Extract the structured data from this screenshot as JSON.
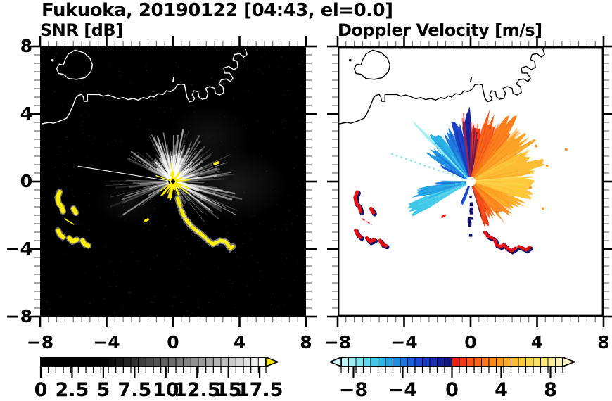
{
  "figure": {
    "title": "Fukuoka, 20190122 [04:43, el=0.0]",
    "station": "Fukuoka",
    "date": "20190122",
    "time": "04:43",
    "elevation": "el=0.0"
  },
  "panels": [
    {
      "title": "SNR [dB]"
    },
    {
      "title": "Doppler Velocity [m/s]"
    }
  ],
  "axes": {
    "x": {
      "min": -8,
      "max": 8,
      "major_values": [
        -8,
        -4,
        0,
        4,
        8
      ],
      "labels": [
        "−8",
        "−4",
        "0",
        "4",
        "8"
      ],
      "minor_step": 0.5
    },
    "y": {
      "min": -8,
      "max": 8,
      "major_values": [
        8,
        4,
        0,
        -4,
        -8
      ],
      "labels": [
        "8",
        "4",
        "0",
        "−4",
        "−8"
      ],
      "minor_step": 0.5
    }
  },
  "chart_data": [
    {
      "type": "heatmap",
      "title": "SNR [dB]",
      "units": "dB",
      "radar_center_xy": [
        0,
        0
      ],
      "background_color": "#000000",
      "coast_color": "#ffffff",
      "saturated_color": "#ffee00",
      "colorbar": {
        "min": 0,
        "max": 18,
        "segments": 30,
        "label_values": [
          0,
          2.5,
          5,
          7.5,
          10,
          12.5,
          15,
          17.5
        ],
        "labels": [
          "0",
          "2.5",
          "5",
          "7.5",
          "10",
          "12.5",
          "15",
          "17.5"
        ],
        "black_below": 5,
        "over_arrow_color": "#f2e400",
        "style": "grayscale"
      },
      "streak_sectors": [
        {
          "az0": 330,
          "az1": 362,
          "n": 30,
          "rmin": 1.4,
          "rmax": 3.1,
          "amin": 0.12,
          "amax": 0.75
        },
        {
          "az0": 2,
          "az1": 34,
          "n": 30,
          "rmin": 1.4,
          "rmax": 3.3,
          "amin": 0.12,
          "amax": 0.7
        },
        {
          "az0": 34,
          "az1": 64,
          "n": 24,
          "rmin": 1.4,
          "rmax": 3.0,
          "amin": 0.08,
          "amax": 0.5
        },
        {
          "az0": 64,
          "az1": 96,
          "n": 26,
          "rmin": 1.5,
          "rmax": 3.8,
          "amin": 0.08,
          "amax": 0.5
        },
        {
          "az0": 96,
          "az1": 126,
          "n": 26,
          "rmin": 1.8,
          "rmax": 4.3,
          "amin": 0.1,
          "amax": 0.6
        },
        {
          "az0": 126,
          "az1": 152,
          "n": 16,
          "rmin": 1.4,
          "rmax": 3.6,
          "amin": 0.07,
          "amax": 0.45
        },
        {
          "az0": 152,
          "az1": 172,
          "n": 9,
          "rmin": 0.7,
          "rmax": 2.2,
          "amin": 0.05,
          "amax": 0.3
        },
        {
          "az0": 233,
          "az1": 272,
          "n": 22,
          "rmin": 1.6,
          "rmax": 4.1,
          "amin": 0.07,
          "amax": 0.5
        },
        {
          "az0": 295,
          "az1": 330,
          "n": 22,
          "rmin": 1.5,
          "rmax": 3.1,
          "amin": 0.1,
          "amax": 0.6
        }
      ],
      "haze": [
        {
          "cx": 3.6,
          "cy": -0.2,
          "rx": 3.4,
          "ry": 2.2,
          "a": 0.1
        },
        {
          "cx": 2.2,
          "cy": 2.6,
          "rx": 2.6,
          "ry": 2.0,
          "a": 0.07
        },
        {
          "cx": -2.6,
          "cy": -1.2,
          "rx": 2.2,
          "ry": 1.4,
          "a": 0.06
        }
      ],
      "shadow_rays_az": [
        193.5,
        200.5
      ],
      "long_thin_ray": {
        "az": 279,
        "r": 5.8
      },
      "saturated_arc": [
        [
          [
            0.28,
            -1.0
          ],
          [
            0.42,
            -1.45
          ]
        ],
        [
          [
            0.5,
            -1.7
          ],
          [
            0.65,
            -2.05
          ]
        ],
        [
          [
            0.78,
            -2.25
          ],
          [
            1.02,
            -2.55
          ]
        ],
        [
          [
            1.15,
            -2.7
          ],
          [
            1.45,
            -2.95
          ]
        ],
        [
          [
            1.6,
            -3.05
          ],
          [
            1.95,
            -3.35
          ]
        ],
        [
          [
            2.1,
            -3.5
          ],
          [
            2.4,
            -3.7
          ],
          [
            2.65,
            -3.6
          ]
        ],
        [
          [
            2.85,
            -3.5
          ],
          [
            3.1,
            -3.55
          ]
        ],
        [
          [
            3.2,
            -3.6
          ],
          [
            3.45,
            -3.95
          ],
          [
            3.6,
            -3.85
          ]
        ]
      ],
      "saturated_specks": [
        [
          [
            -1.7,
            -2.35
          ],
          [
            -1.52,
            -2.25
          ]
        ],
        [
          [
            2.5,
            1.05
          ],
          [
            2.72,
            1.12
          ]
        ]
      ]
    },
    {
      "type": "heatmap",
      "title": "Doppler Velocity [m/s]",
      "units": "m/s",
      "radar_center_xy": [
        0,
        0
      ],
      "background_color": "#ffffff",
      "coast_color": "#000000",
      "colorbar": {
        "min": -9,
        "max": 9,
        "segments": 30,
        "label_values": [
          -8,
          -4,
          0,
          4,
          8
        ],
        "labels": [
          "−8",
          "−4",
          "0",
          "4",
          "8"
        ],
        "negative_stops": [
          "#0d116e",
          "#1b2fb4",
          "#1a53d8",
          "#1e8fe0",
          "#2fc0e8",
          "#7fe6f0",
          "#d2f6f8"
        ],
        "positive_stops": [
          "#ee1111",
          "#f4551a",
          "#fa7f1c",
          "#fcab28",
          "#fdd243",
          "#fce97e",
          "#f9f3c5"
        ]
      },
      "velocity_sectors": [
        {
          "az0": 361,
          "az1": 372,
          "r": 3.9,
          "v": 0.8
        },
        {
          "az0": 372,
          "az1": 386,
          "r": 4.2,
          "v": 1.8
        },
        {
          "az0": 386,
          "az1": 402,
          "r": 4.5,
          "v": 3.0
        },
        {
          "az0": 402,
          "az1": 420,
          "r": 4.4,
          "v": 4.2
        },
        {
          "az0": 420,
          "az1": 444,
          "r": 4.3,
          "v": 5.2
        },
        {
          "az0": 444,
          "az1": 468,
          "r": 4.0,
          "v": 5.6
        },
        {
          "az0": 468,
          "az1": 486,
          "r": 3.4,
          "v": 4.6
        },
        {
          "az0": 486,
          "az1": 502,
          "r": 3.0,
          "v": 3.4
        },
        {
          "az0": 502,
          "az1": 514,
          "r": 2.6,
          "v": 2.0
        },
        {
          "az0": 514,
          "az1": 524,
          "r": 2.9,
          "v": 0.9
        },
        {
          "az0": 196,
          "az1": 206,
          "r": 1.5,
          "v": -3.0
        },
        {
          "az0": 238,
          "az1": 252,
          "r": 4.1,
          "v": -6.3
        },
        {
          "az0": 252,
          "az1": 264,
          "r": 3.5,
          "v": -5.2
        },
        {
          "az0": 264,
          "az1": 271,
          "r": 2.3,
          "v": -3.8
        },
        {
          "az0": 294,
          "az1": 300,
          "r": 2.0,
          "v": -3.2
        },
        {
          "az0": 300,
          "az1": 313,
          "r": 3.0,
          "v": -4.6
        },
        {
          "az0": 313,
          "az1": 328,
          "r": 3.5,
          "v": -5.5
        },
        {
          "az0": 328,
          "az1": 340,
          "r": 3.3,
          "v": -4.0
        },
        {
          "az0": 340,
          "az1": 351,
          "r": 3.6,
          "v": -2.2
        },
        {
          "az0": 351,
          "az1": 361,
          "r": 4.4,
          "v": -1.0
        }
      ],
      "pale_cyan_streak": {
        "az0": 314,
        "az1": 317,
        "r": 5.1,
        "v": -8.2
      },
      "dotted_ray": {
        "az": 289,
        "r": 5.1,
        "v": -7.5
      },
      "red_dash": [
        [
          -1.7,
          -2.1
        ],
        [
          -1.55,
          -2.0
        ]
      ],
      "bottom_squiggles": [
        [
          [
            0.85,
            -3.0
          ],
          [
            1.05,
            -3.25
          ],
          [
            1.3,
            -3.35
          ]
        ],
        [
          [
            1.45,
            -3.45
          ],
          [
            1.55,
            -3.75
          ],
          [
            1.8,
            -3.85
          ],
          [
            2.0,
            -3.75
          ],
          [
            2.2,
            -3.95
          ],
          [
            2.45,
            -4.1
          ],
          [
            2.7,
            -3.95
          ]
        ],
        [
          [
            2.9,
            -3.85
          ],
          [
            3.15,
            -3.95
          ],
          [
            3.35,
            -4.05
          ],
          [
            3.55,
            -3.9
          ]
        ]
      ],
      "warm_specks": [
        [
          3.6,
          -0.35
        ],
        [
          4.6,
          0.9
        ],
        [
          5.75,
          1.9
        ],
        [
          3.95,
          2.1
        ],
        [
          4.35,
          -1.6
        ]
      ],
      "navy_specks": [
        [
          0.0,
          -0.9
        ],
        [
          0.05,
          -1.3
        ],
        [
          0.0,
          -1.75
        ],
        [
          0.08,
          -2.2
        ]
      ],
      "cyan_specks": [
        [
          -0.5,
          -0.1
        ],
        [
          -0.85,
          -0.15
        ]
      ]
    }
  ],
  "hard_target_blobs": {
    "west_cluster": [
      [
        [
          -6.82,
          -0.62
        ],
        [
          -6.95,
          -0.95
        ],
        [
          -6.88,
          -1.3
        ],
        [
          -6.7,
          -1.5
        ],
        [
          -6.62,
          -1.78
        ]
      ],
      [
        [
          -6.0,
          -1.6
        ],
        [
          -5.85,
          -1.85
        ]
      ],
      [
        [
          -6.92,
          -2.9
        ],
        [
          -6.8,
          -3.15
        ],
        [
          -6.62,
          -3.3
        ]
      ],
      [
        [
          -6.25,
          -3.35
        ],
        [
          -6.05,
          -3.55
        ],
        [
          -5.8,
          -3.45
        ]
      ],
      [
        [
          -5.45,
          -3.5
        ],
        [
          -5.3,
          -3.72
        ],
        [
          -5.1,
          -3.8
        ]
      ]
    ],
    "west_thin_line": [
      [
        -6.55,
        -2.2
      ],
      [
        -5.95,
        -2.55
      ]
    ]
  },
  "map": {
    "coast_main": [
      [
        -8,
        3.4
      ],
      [
        -7.45,
        3.5
      ],
      [
        -7.2,
        3.45
      ],
      [
        -6.75,
        3.6
      ],
      [
        -6.4,
        3.75
      ],
      [
        -6.2,
        4.1
      ],
      [
        -6.0,
        4.55
      ],
      [
        -5.85,
        4.95
      ],
      [
        -5.7,
        5.1
      ],
      [
        -5.5,
        5.15
      ],
      [
        -5.4,
        5.0
      ],
      [
        -5.35,
        4.75
      ],
      [
        -5.15,
        4.75
      ],
      [
        -5.15,
        5.15
      ],
      [
        -4.45,
        5.15
      ],
      [
        -4.2,
        5.05
      ],
      [
        -3.9,
        5.12
      ],
      [
        -3.55,
        5.0
      ],
      [
        -3.3,
        4.9
      ],
      [
        -3.0,
        4.97
      ],
      [
        -2.7,
        4.85
      ],
      [
        -2.4,
        4.92
      ],
      [
        -2.1,
        4.82
      ],
      [
        -1.8,
        4.97
      ],
      [
        -1.55,
        4.9
      ],
      [
        -1.35,
        5.07
      ],
      [
        -1.15,
        5.0
      ],
      [
        -0.9,
        5.2
      ],
      [
        -0.6,
        5.15
      ],
      [
        -0.4,
        5.37
      ],
      [
        -0.15,
        5.32
      ],
      [
        0.1,
        5.47
      ],
      [
        0.25,
        5.72
      ],
      [
        0.5,
        5.77
      ],
      [
        0.7,
        5.72
      ],
      [
        0.75,
        5.42
      ],
      [
        0.85,
        4.97
      ],
      [
        1.0,
        4.72
      ],
      [
        1.2,
        4.77
      ],
      [
        1.3,
        4.92
      ],
      [
        1.15,
        5.12
      ],
      [
        1.25,
        5.37
      ],
      [
        1.5,
        5.32
      ],
      [
        1.55,
        5.02
      ],
      [
        1.75,
        4.87
      ],
      [
        2.0,
        4.92
      ],
      [
        2.1,
        5.22
      ],
      [
        1.95,
        5.52
      ],
      [
        2.2,
        5.62
      ],
      [
        2.5,
        5.52
      ],
      [
        2.55,
        5.22
      ],
      [
        2.8,
        5.12
      ],
      [
        3.05,
        5.27
      ],
      [
        3.0,
        5.62
      ],
      [
        2.75,
        5.77
      ],
      [
        2.9,
        6.02
      ],
      [
        3.2,
        6.07
      ],
      [
        3.45,
        5.92
      ],
      [
        3.6,
        6.12
      ],
      [
        3.4,
        6.42
      ],
      [
        3.1,
        6.42
      ],
      [
        3.05,
        6.72
      ],
      [
        3.35,
        6.82
      ],
      [
        3.65,
        6.62
      ],
      [
        3.9,
        6.77
      ],
      [
        3.85,
        7.12
      ],
      [
        3.6,
        7.22
      ],
      [
        3.7,
        7.52
      ],
      [
        4.0,
        7.57
      ],
      [
        4.25,
        7.37
      ],
      [
        4.45,
        7.52
      ],
      [
        4.35,
        7.82
      ],
      [
        4.45,
        8.1
      ]
    ],
    "island": [
      [
        -6.3,
        7.55
      ],
      [
        -5.9,
        7.78
      ],
      [
        -5.35,
        7.62
      ],
      [
        -5.0,
        7.3
      ],
      [
        -4.85,
        6.9
      ],
      [
        -4.95,
        6.5
      ],
      [
        -5.3,
        6.15
      ],
      [
        -5.8,
        6.05
      ],
      [
        -6.3,
        6.1
      ],
      [
        -6.6,
        6.35
      ],
      [
        -6.9,
        6.4
      ],
      [
        -7.0,
        6.7
      ],
      [
        -6.85,
        6.95
      ],
      [
        -6.6,
        6.9
      ],
      [
        -6.5,
        7.2
      ]
    ],
    "islet_xy": [
      -7.25,
      7.18
    ],
    "small_mark": [
      [
        0.0,
        5.92
      ],
      [
        0.05,
        6.18
      ]
    ]
  }
}
